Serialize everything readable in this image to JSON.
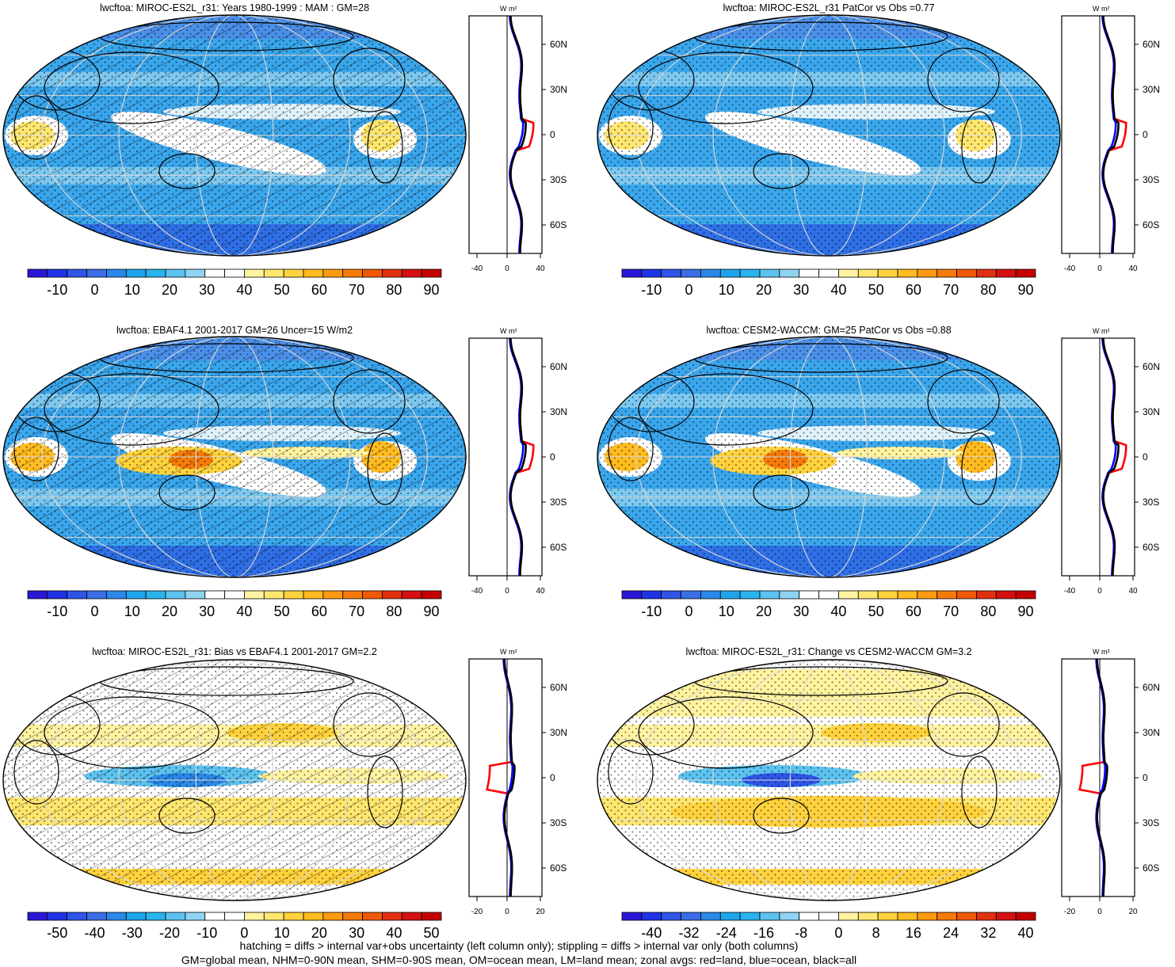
{
  "panels": [
    {
      "id": "p1",
      "title": "lwcftoa: MIROC-ES2L_r31: Years 1980-1999 : MAM : GM=28",
      "palette": "abs",
      "hatch": true,
      "scale": "abs"
    },
    {
      "id": "p2",
      "title": "lwcftoa: MIROC-ES2L_r31 PatCor vs Obs =0.77",
      "palette": "abs",
      "hatch": false,
      "scale": "abs"
    },
    {
      "id": "p3",
      "title": "lwcftoa: EBAF4.1 2001-2017 GM=26 Uncer=15 W/m2",
      "palette": "abs",
      "hatch": true,
      "scale": "abs"
    },
    {
      "id": "p4",
      "title": "lwcftoa: CESM2-WACCM: GM=25 PatCor vs Obs =0.88",
      "palette": "abs",
      "hatch": false,
      "scale": "abs"
    },
    {
      "id": "p5",
      "title": "lwcftoa: MIROC-ES2L_r31: Bias vs EBAF4.1 2001-2017 GM=2.2",
      "palette": "diff",
      "hatch": true,
      "scale": "diff"
    },
    {
      "id": "p6",
      "title": "lwcftoa: MIROC-ES2L_r31: Change vs CESM2-WACCM GM=3.2",
      "palette": "diff",
      "hatch": false,
      "scale": "diff"
    }
  ],
  "colorbars": {
    "abs_labels": [
      "-10",
      "0",
      "10",
      "20",
      "30",
      "40",
      "50",
      "60",
      "70",
      "80",
      "90"
    ],
    "bias_labels": [
      "-50",
      "-40",
      "-30",
      "-20",
      "-10",
      "0",
      "10",
      "20",
      "30",
      "40",
      "50"
    ],
    "change_labels": [
      "-40",
      "-32",
      "-24",
      "-16",
      "-8",
      "0",
      "8",
      "16",
      "24",
      "32",
      "40"
    ],
    "colors": [
      "#2a17d6",
      "#1f33e6",
      "#2f55e8",
      "#3a6ee6",
      "#2a88e8",
      "#1ea4ec",
      "#28b4ee",
      "#5cc2ef",
      "#8fd3f2",
      "#ffffff",
      "#ffffff",
      "#fff3a0",
      "#ffe66e",
      "#ffd23d",
      "#ffbb1f",
      "#ff9a10",
      "#f57a0a",
      "#f05808",
      "#e03010",
      "#d41010",
      "#c40000"
    ]
  },
  "zonal": {
    "unit": "W m²",
    "lat_labels": [
      "60N",
      "30N",
      "0",
      "30S",
      "60S"
    ],
    "abs_x_labels": [
      "-40",
      "0",
      "40"
    ],
    "diff_x_labels": [
      "-20",
      "0",
      "20"
    ],
    "series_colors": {
      "land": "#ff0000",
      "ocean": "#0000ff",
      "all": "#000000"
    }
  },
  "footer": {
    "line1": "hatching = diffs > internal var+obs uncertainty (left column only); stippling = diffs > internal var only (both columns)",
    "line2": "GM=global mean, NHM=0-90N mean, SHM=0-90S mean, OM=ocean mean, LM=land mean; zonal avgs: red=land, blue=ocean, black=all"
  }
}
